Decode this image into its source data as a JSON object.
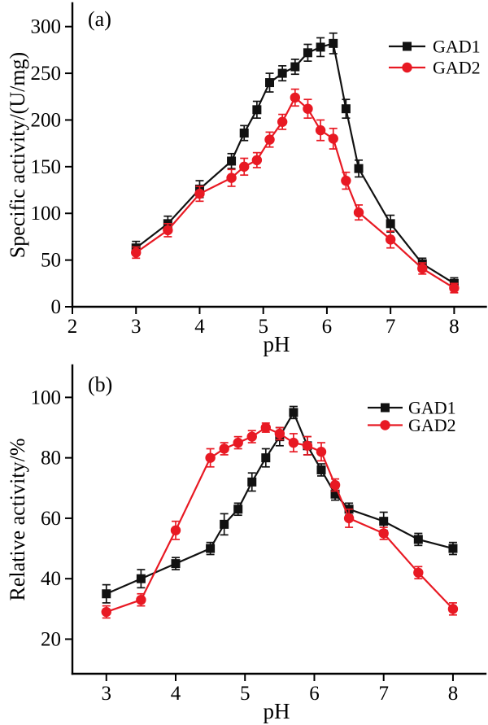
{
  "figure": {
    "background": "#ffffff",
    "series_colors": {
      "GAD1": "#111111",
      "GAD2": "#e81923"
    }
  },
  "chart_data": [
    {
      "type": "line",
      "panel_label": "(a)",
      "xlabel": "pH",
      "ylabel": "Specific activity/(U/mg)",
      "x": [
        3,
        3.5,
        4,
        4.5,
        4.7,
        4.9,
        5.1,
        5.3,
        5.5,
        5.7,
        5.9,
        6.1,
        6.3,
        6.5,
        7,
        7.5,
        8
      ],
      "series": [
        {
          "name": "GAD1",
          "color": "#111111",
          "marker": "square",
          "values": [
            63,
            89,
            126,
            156,
            186,
            211,
            240,
            250,
            257,
            272,
            278,
            282,
            212,
            148,
            89,
            46,
            25
          ],
          "errors": [
            7,
            8,
            9,
            8,
            8,
            9,
            10,
            8,
            8,
            9,
            10,
            11,
            10,
            9,
            9,
            6,
            6
          ]
        },
        {
          "name": "GAD2",
          "color": "#e81923",
          "marker": "circle",
          "values": [
            58,
            82,
            121,
            138,
            150,
            157,
            179,
            198,
            224,
            212,
            189,
            180,
            135,
            101,
            72,
            41,
            20
          ],
          "errors": [
            6,
            7,
            8,
            9,
            9,
            8,
            8,
            8,
            9,
            10,
            11,
            11,
            9,
            8,
            9,
            6,
            5
          ]
        }
      ],
      "xlim": [
        2,
        8.5
      ],
      "ylim": [
        0,
        325
      ],
      "xticks": [
        2,
        3,
        4,
        5,
        6,
        7,
        8
      ],
      "yticks": [
        0,
        50,
        100,
        150,
        200,
        250,
        300
      ],
      "grid": false,
      "legend_position": "top-right",
      "legend": [
        "GAD1",
        "GAD2"
      ]
    },
    {
      "type": "line",
      "panel_label": "(b)",
      "xlabel": "pH",
      "ylabel": "Relative activity/%",
      "x": [
        3,
        3.5,
        4,
        4.5,
        4.7,
        4.9,
        5.1,
        5.3,
        5.5,
        5.7,
        5.9,
        6.1,
        6.3,
        6.5,
        7,
        7.5,
        8
      ],
      "series": [
        {
          "name": "GAD1",
          "color": "#111111",
          "marker": "square",
          "values": [
            35,
            40,
            45,
            50,
            58,
            63,
            72,
            80,
            87,
            95,
            84,
            76,
            68,
            63,
            59,
            53,
            50
          ],
          "errors": [
            3,
            3,
            2,
            2,
            3.5,
            2,
            3,
            3,
            3,
            2,
            3,
            2,
            2,
            2,
            3,
            2,
            2
          ]
        },
        {
          "name": "GAD2",
          "color": "#e81923",
          "marker": "circle",
          "values": [
            29,
            33,
            56,
            80,
            83,
            85,
            87,
            90,
            88,
            85,
            84,
            82,
            71,
            60,
            55,
            42,
            30
          ],
          "errors": [
            2,
            2,
            3,
            3,
            2,
            2,
            2,
            1.5,
            2,
            3,
            3,
            3,
            2,
            3,
            2,
            2,
            2
          ]
        }
      ],
      "xlim": [
        2.51,
        8.47
      ],
      "ylim": [
        8.55,
        110.6
      ],
      "xticks": [
        3,
        4,
        5,
        6,
        7,
        8
      ],
      "yticks": [
        20,
        40,
        60,
        80,
        100
      ],
      "grid": false,
      "legend_position": "top-right",
      "legend": [
        "GAD1",
        "GAD2"
      ]
    }
  ]
}
